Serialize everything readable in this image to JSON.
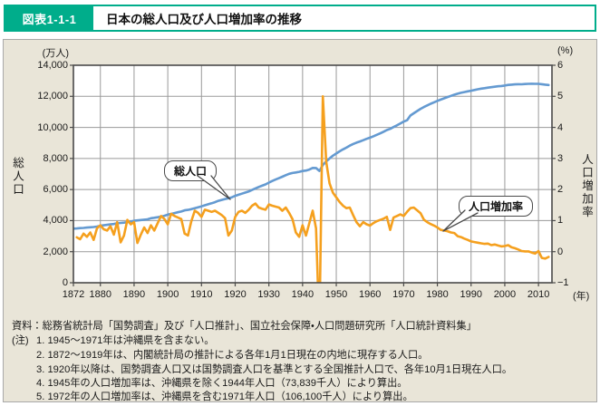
{
  "header": {
    "figure_label": "図表1-1-1",
    "title": "日本の総人口及び人口増加率の推移"
  },
  "chart": {
    "left_axis_unit": "(万人)",
    "right_axis_unit": "(%)",
    "x_axis_unit": "(年)",
    "left_axis_title": "総人口",
    "right_axis_title": "人口増加率",
    "callout_population": "総人口",
    "callout_rate": "人口増加率"
  },
  "colors": {
    "accent_green": "#00ad8b",
    "panel_bg": "#e9e5d8",
    "plot_bg": "#ffffff",
    "grid": "#9a9a9a",
    "axis_border": "#4a4a4a",
    "population_line": "#649ad1",
    "rate_line": "#f5a01e"
  },
  "chart_data": {
    "type": "line",
    "title": "日本の総人口及び人口増加率の推移",
    "x_range": [
      1872,
      2014
    ],
    "x_ticks": [
      1872,
      1880,
      1890,
      1900,
      1910,
      1920,
      1930,
      1940,
      1950,
      1960,
      1970,
      1980,
      1990,
      2000,
      2010
    ],
    "x_unit": "年",
    "grid": true,
    "left_axis": {
      "title": "総人口",
      "unit": "万人",
      "range": [
        0,
        14000
      ],
      "tick_step": 2000
    },
    "right_axis": {
      "title": "人口増加率",
      "unit": "%",
      "range": [
        -1,
        6
      ],
      "tick_step": 1
    },
    "series": [
      {
        "name": "総人口",
        "axis": "left",
        "color": "#649ad1",
        "start_year": 1872,
        "annual_values": [
          3481,
          3497,
          3517,
          3532,
          3555,
          3571,
          3589,
          3618,
          3671,
          3699,
          3726,
          3756,
          3780,
          3831,
          3851,
          3870,
          3902,
          3940,
          3990,
          4015,
          4039,
          4062,
          4085,
          4156,
          4184,
          4218,
          4261,
          4312,
          4385,
          4436,
          4487,
          4537,
          4586,
          4660,
          4690,
          4734,
          4796,
          4857,
          4918,
          4985,
          5052,
          5118,
          5184,
          5275,
          5333,
          5390,
          5430,
          5500,
          5596,
          5666,
          5737,
          5806,
          5875,
          5974,
          6074,
          6166,
          6245,
          6330,
          6445,
          6550,
          6643,
          6733,
          6827,
          6925,
          7011,
          7063,
          7101,
          7138,
          7193,
          7222,
          7288,
          7390,
          7384,
          7200,
          7575,
          7810,
          8000,
          8177,
          8320,
          8457,
          8585,
          8698,
          8827,
          8928,
          9017,
          9092,
          9177,
          9264,
          9342,
          9429,
          9518,
          9616,
          9718,
          9828,
          9904,
          10020,
          10133,
          10254,
          10372,
          10461,
          10760,
          10910,
          11057,
          11194,
          11309,
          11417,
          11519,
          11616,
          11706,
          11790,
          11873,
          11954,
          12031,
          12105,
          12166,
          12224,
          12275,
          12321,
          12361,
          12410,
          12457,
          12494,
          12527,
          12557,
          12586,
          12616,
          12647,
          12667,
          12693,
          12732,
          12749,
          12769,
          12779,
          12777,
          12790,
          12803,
          12808,
          12803,
          12806,
          12780,
          12752,
          12730
        ]
      },
      {
        "name": "人口増加率",
        "axis": "right",
        "color": "#f5a01e",
        "start_year": 1873,
        "annual_values": [
          0.46,
          0.4,
          0.58,
          0.48,
          0.62,
          0.38,
          0.75,
          0.85,
          0.72,
          0.68,
          0.82,
          0.55,
          0.95,
          0.3,
          0.52,
          1.02,
          0.88,
          0.95,
          0.28,
          0.55,
          0.78,
          0.6,
          0.85,
          0.68,
          0.92,
          1.15,
          1.05,
          0.88,
          1.22,
          1.15,
          1.1,
          1.05,
          0.58,
          0.52,
          0.98,
          1.32,
          1.25,
          1.12,
          1.35,
          1.32,
          1.28,
          1.32,
          1.25,
          1.18,
          1.08,
          0.52,
          0.68,
          1.12,
          1.28,
          1.32,
          1.25,
          1.35,
          1.48,
          1.55,
          1.42,
          1.38,
          1.35,
          1.52,
          1.48,
          1.45,
          1.42,
          1.32,
          1.42,
          1.25,
          1.05,
          0.62,
          0.48,
          0.85,
          0.52,
          0.92,
          1.32,
          0.75,
          -2.5,
          5.0,
          2.9,
          2.2,
          1.9,
          1.75,
          1.6,
          1.48,
          1.4,
          1.42,
          1.18,
          0.95,
          0.82,
          0.95,
          0.88,
          0.84,
          0.92,
          0.98,
          1.02,
          1.06,
          1.12,
          0.7,
          1.1,
          1.15,
          1.2,
          1.15,
          1.28,
          1.4,
          1.42,
          1.33,
          1.24,
          1.03,
          0.95,
          0.89,
          0.84,
          0.78,
          0.7,
          0.68,
          0.66,
          0.62,
          0.6,
          0.5,
          0.47,
          0.42,
          0.38,
          0.33,
          0.31,
          0.29,
          0.27,
          0.25,
          0.26,
          0.21,
          0.23,
          0.2,
          0.17,
          0.18,
          0.21,
          0.14,
          0.11,
          0.07,
          0.02,
          0.01,
          0.01,
          -0.03,
          -0.06,
          0.02,
          -0.2,
          -0.22,
          -0.17
        ]
      }
    ],
    "annotations": [
      {
        "text": "総人口",
        "points_to_year": 1918
      },
      {
        "text": "人口増加率",
        "points_to_year": 1982
      }
    ]
  },
  "notes": {
    "source": "資料：総務省統計局「国勢調査」及び「人口推計」、国立社会保障・人口問題研究所「人口統計資料集」",
    "note_label": "(注)",
    "items": [
      "1. 1945～1971年は沖縄県を含まない。",
      "2. 1872～1919年は、内閣統計局の推計による各年1月1日現在の内地に現存する人口。",
      "3. 1920年以降は、国勢調査人口又は国勢調査人口を基準とする全国推計人口で、各年10月1日現在人口。",
      "4. 1945年の人口増加率は、沖縄県を除く1944年人口（73,839千人）により算出。",
      "5. 1972年の人口増加率は、沖縄県を含む1971年人口（106,100千人）により算出。"
    ]
  }
}
